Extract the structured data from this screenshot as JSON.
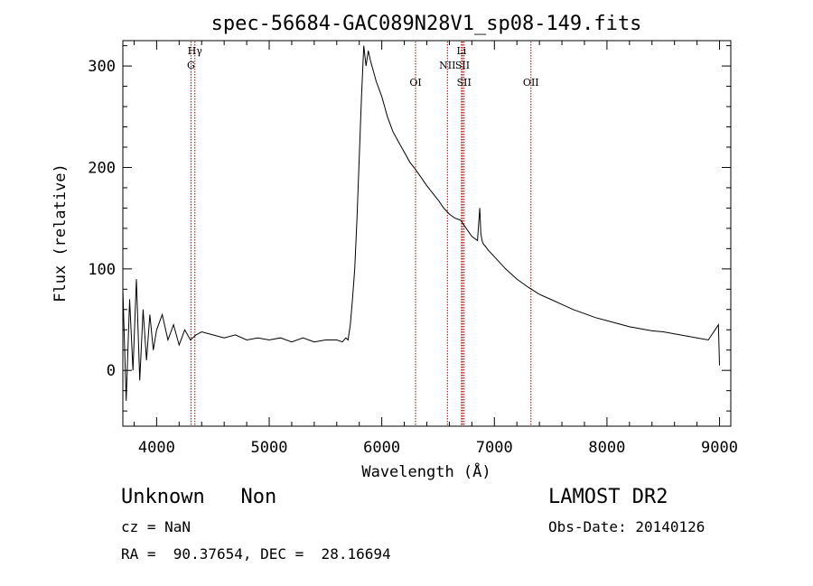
{
  "chart_data": {
    "type": "line",
    "title": "spec-56684-GAC089N28V1_sp08-149.fits",
    "xlabel": "Wavelength (Å)",
    "ylabel": "Flux (relative)",
    "xlim": [
      3700,
      9100
    ],
    "ylim": [
      -55,
      325
    ],
    "xticks": [
      4000,
      5000,
      6000,
      7000,
      8000,
      9000
    ],
    "yticks": [
      0,
      100,
      200,
      300
    ],
    "grid": false,
    "series": [
      {
        "x": [
          3700,
          3730,
          3760,
          3790,
          3820,
          3850,
          3880,
          3910,
          3940,
          3970,
          4000,
          4050,
          4100,
          4150,
          4200,
          4250,
          4300,
          4350,
          4400,
          4500,
          4600,
          4700,
          4800,
          4900,
          5000,
          5100,
          5200,
          5300,
          5400,
          5500,
          5600,
          5650,
          5680,
          5700,
          5720,
          5740,
          5760,
          5780,
          5800,
          5820,
          5840,
          5860,
          5880,
          5900,
          5950,
          6000,
          6050,
          6100,
          6150,
          6200,
          6250,
          6300,
          6350,
          6400,
          6450,
          6500,
          6550,
          6600,
          6650,
          6700,
          6750,
          6800,
          6850,
          6870,
          6880,
          6890,
          6900,
          6950,
          7000,
          7100,
          7200,
          7300,
          7400,
          7500,
          7600,
          7700,
          7800,
          7900,
          8000,
          8100,
          8200,
          8300,
          8400,
          8500,
          8600,
          8700,
          8800,
          8900,
          8960,
          8990,
          9000
        ],
        "y": [
          80,
          -30,
          70,
          0,
          90,
          -10,
          60,
          10,
          55,
          20,
          40,
          55,
          30,
          45,
          25,
          40,
          30,
          35,
          38,
          35,
          32,
          35,
          30,
          32,
          30,
          32,
          28,
          32,
          28,
          30,
          30,
          28,
          32,
          30,
          45,
          70,
          100,
          150,
          210,
          270,
          320,
          300,
          315,
          305,
          285,
          270,
          250,
          235,
          225,
          215,
          205,
          198,
          190,
          182,
          175,
          168,
          160,
          154,
          150,
          148,
          140,
          132,
          128,
          160,
          135,
          128,
          125,
          118,
          112,
          100,
          90,
          82,
          75,
          70,
          65,
          60,
          56,
          52,
          49,
          46,
          43,
          41,
          39,
          38,
          36,
          34,
          32,
          30,
          40,
          45,
          5
        ]
      }
    ],
    "lines": [
      {
        "name": "Hγ",
        "x": 4340,
        "row": 0
      },
      {
        "name": "G",
        "x": 4305,
        "row": 1
      },
      {
        "name": "OI",
        "x": 6300,
        "row": 2
      },
      {
        "name": "NII",
        "x": 6583,
        "row": 1
      },
      {
        "name": "Li",
        "x": 6708,
        "row": 0
      },
      {
        "name": "SII",
        "x": 6717,
        "row": 1
      },
      {
        "name": "SII",
        "x": 6731,
        "row": 2
      },
      {
        "name": "OII",
        "x": 7325,
        "row": 2
      }
    ]
  },
  "footer": {
    "class_text": "Unknown   Non",
    "survey": "LAMOST DR2",
    "cz": "cz = NaN",
    "obs_date": "Obs-Date: 20140126",
    "coords": "RA =  90.37654, DEC =  28.16694"
  },
  "colors": {
    "spectrum": "#000000",
    "line_marker": "#a00000"
  }
}
